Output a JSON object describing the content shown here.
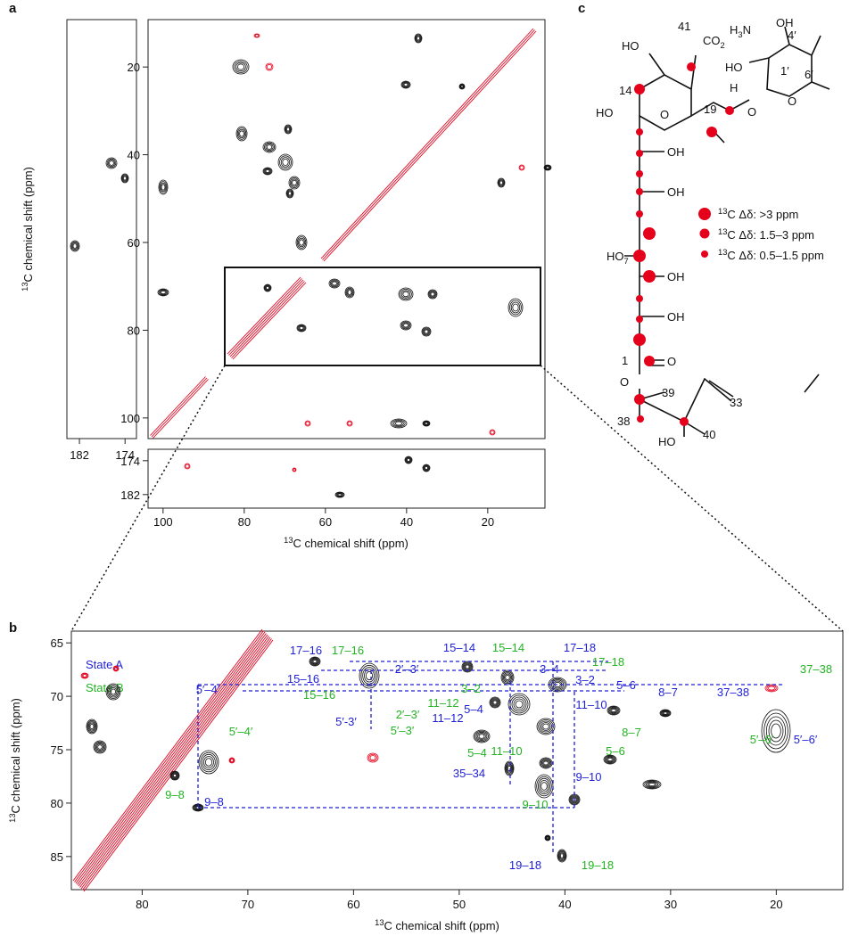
{
  "panel_a": {
    "letter": "a",
    "x_label": {
      "pre_sup": "13",
      "text": "C chemical shift (ppm)"
    },
    "y_label": {
      "pre_sup": "13",
      "text": "C chemical shift (ppm)"
    },
    "xlim": [
      103.7,
      5.9
    ],
    "ylim": [
      9.2,
      104.7
    ],
    "xticks": [
      100,
      80,
      60,
      40,
      20
    ],
    "yticks": [
      20,
      40,
      60,
      80,
      100
    ],
    "side_xlim": [
      184.2,
      172.0
    ],
    "side_xticks": [
      182,
      174
    ],
    "bottom_ylim": [
      171.3,
      185.2
    ],
    "bottom_yticks": [
      174,
      182
    ]
  },
  "panel_b": {
    "letter": "b",
    "x_label": {
      "pre_sup": "13",
      "text": "C chemical shift (ppm)"
    },
    "y_label": {
      "pre_sup": "13",
      "text": "C chemical shift (ppm)"
    },
    "xlim": [
      86.7,
      13.7
    ],
    "ylim": [
      63.9,
      88.1
    ],
    "xticks": [
      80,
      70,
      60,
      50,
      40,
      30,
      20
    ],
    "yticks": [
      65,
      70,
      75,
      80,
      85
    ],
    "legend": [
      {
        "name": "State A",
        "color": "#1f1fd6"
      },
      {
        "name": "State B",
        "color": "#22b422"
      }
    ],
    "state_a_labels": [
      "17–16",
      "15–16",
      "2′–3′",
      "5′–4′",
      "5′-3′",
      "9–8",
      "15–14",
      "17–18",
      "3–4",
      "3–2",
      "11–10",
      "11–12",
      "5–4",
      "5–6",
      "8–7",
      "37–38",
      "5′–6′",
      "35–34",
      "9–10",
      "19–18"
    ],
    "state_b_labels": [
      "17–16",
      "15–16",
      "2′–3′",
      "5′–4′",
      "5′–3′",
      "9–8",
      "15–14",
      "17–18",
      "3–2",
      "11–12",
      "11–10",
      "5–4",
      "5–6",
      "8–7",
      "37–38",
      "5′–6′",
      "9–10",
      "19–18"
    ]
  },
  "panel_c": {
    "letter": "c",
    "labels": [
      "41",
      {
        "text": "CO",
        "sub": "2"
      },
      "HO",
      "14",
      "HO",
      "O",
      "19",
      "O",
      "OH",
      "OH",
      {
        "text": "HO",
        "sub": "7"
      },
      "OH",
      "OH",
      "1",
      "O",
      "O",
      "39",
      "33",
      "38",
      "HO",
      "40",
      {
        "text": "H",
        "sub": "3",
        "after": "N"
      },
      "OH",
      "4′",
      "HO",
      "1′",
      "H",
      "O",
      "6′"
    ],
    "legend": [
      {
        "pre_sup": "13",
        "text": "C Δδ: >3 ppm"
      },
      {
        "pre_sup": "13",
        "text": "C Δδ: 1.5–3 ppm"
      },
      {
        "pre_sup": "13",
        "text": "C Δδ: 0.5–1.5 ppm"
      }
    ]
  }
}
